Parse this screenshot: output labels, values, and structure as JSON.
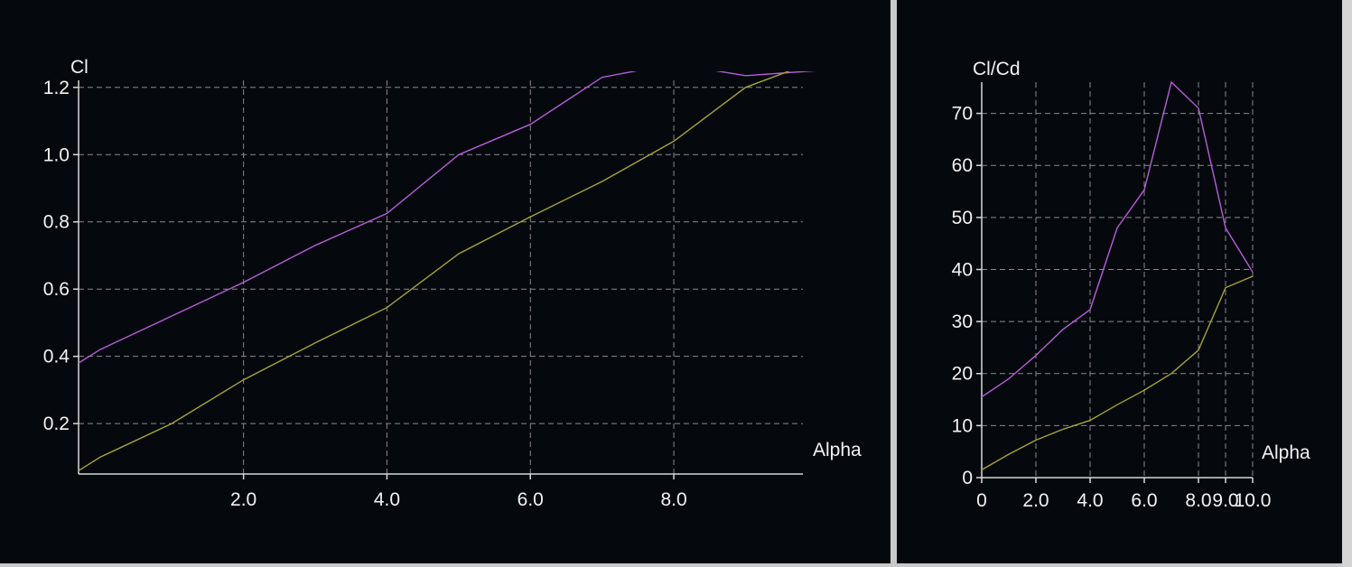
{
  "chart_data": [
    {
      "type": "line",
      "title": "",
      "xlabel": "Alpha",
      "ylabel": "Cl",
      "xlim": [
        -0.3,
        9.8
      ],
      "ylim": [
        0.05,
        1.28
      ],
      "x_ticks": [
        2.0,
        4.0,
        6.0,
        8.0
      ],
      "x_tick_labels": [
        "2.0",
        "4.0",
        "6.0",
        "8.0"
      ],
      "y_ticks": [
        0.2,
        0.4,
        0.6,
        0.8,
        1.0,
        1.2
      ],
      "y_tick_labels": [
        "0.2",
        "0.4",
        "0.6",
        "0.8",
        "1.0",
        "1.2"
      ],
      "grid": true,
      "series": [
        {
          "color": "#b65ed8",
          "x": [
            -0.3,
            0,
            1,
            2,
            3,
            4,
            5,
            6,
            7,
            8,
            9,
            10
          ],
          "y": [
            0.38,
            0.42,
            0.52,
            0.62,
            0.73,
            0.825,
            1.0,
            1.09,
            1.23,
            1.27,
            1.235,
            1.25
          ]
        },
        {
          "color": "#a6a33a",
          "x": [
            -0.3,
            0,
            1,
            2,
            3,
            4,
            5,
            6,
            7,
            8,
            9,
            10
          ],
          "y": [
            0.06,
            0.1,
            0.2,
            0.33,
            0.44,
            0.545,
            0.705,
            0.815,
            0.92,
            1.04,
            1.2,
            1.28
          ]
        }
      ]
    },
    {
      "type": "line",
      "title": "",
      "xlabel": "Alpha",
      "ylabel": "Cl/Cd",
      "xlim": [
        0,
        10.0
      ],
      "ylim": [
        0,
        76
      ],
      "x_ticks": [
        0,
        2.0,
        4.0,
        6.0,
        8.0,
        9.0,
        10.0
      ],
      "x_tick_labels": [
        "0",
        "2.0",
        "4.0",
        "6.0",
        "8.0",
        "9.0",
        "10.0"
      ],
      "y_ticks": [
        0,
        10,
        20,
        30,
        40,
        50,
        60,
        70
      ],
      "y_tick_labels": [
        "0",
        "10",
        "20",
        "30",
        "40",
        "50",
        "60",
        "70"
      ],
      "grid": true,
      "series": [
        {
          "color": "#b65ed8",
          "x": [
            0,
            1,
            2,
            3,
            4,
            5,
            6,
            7,
            8,
            9,
            10
          ],
          "y": [
            15.5,
            19,
            23.5,
            28.5,
            32.3,
            48,
            55.3,
            76,
            71,
            48,
            39.5
          ]
        },
        {
          "color": "#a6a33a",
          "x": [
            0,
            1,
            2,
            3,
            4,
            5,
            6,
            7,
            8,
            9,
            10
          ],
          "y": [
            1.5,
            4.5,
            7.2,
            9.3,
            11,
            14,
            16.8,
            20,
            24.5,
            36.5,
            38.7
          ]
        }
      ]
    }
  ]
}
